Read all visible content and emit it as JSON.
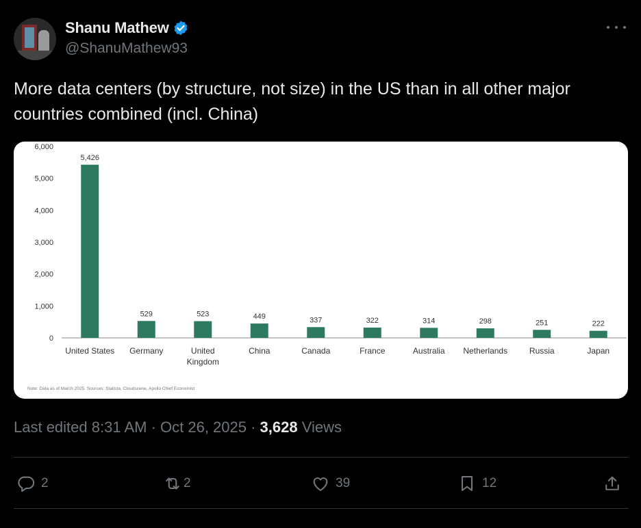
{
  "tweet": {
    "author": {
      "display_name": "Shanu Mathew",
      "handle": "@ShanuMathew93",
      "verified_color": "#1d9bf0"
    },
    "text": "More data centers (by structure, not size)  in the US than in all other major countries combined (incl. China)",
    "meta": {
      "edited_time": "Last edited 8:31 AM · Oct 26, 2025 · ",
      "views_count": "3,628",
      "views_label": " Views"
    },
    "actions": {
      "replies": "2",
      "reposts": "2",
      "likes": "39",
      "bookmarks": "12"
    },
    "icons": [
      "reply-icon",
      "repost-icon",
      "like-icon",
      "bookmark-icon",
      "share-icon",
      "more-icon",
      "verified-badge-icon"
    ]
  },
  "chart_data": {
    "type": "bar",
    "categories": [
      "United States",
      "Germany",
      "United\nKingdom",
      "China",
      "Canada",
      "France",
      "Australia",
      "Netherlands",
      "Russia",
      "Japan"
    ],
    "values": [
      5426,
      529,
      523,
      449,
      337,
      322,
      314,
      298,
      251,
      222
    ],
    "value_labels": [
      "5,426",
      "529",
      "523",
      "449",
      "337",
      "322",
      "314",
      "298",
      "251",
      "222"
    ],
    "y_ticks": [
      "0",
      "1,000",
      "2,000",
      "3,000",
      "4,000",
      "5,000",
      "6,000"
    ],
    "ylim": [
      0,
      6000
    ],
    "bar_color": "#2e7a60",
    "grid": false,
    "note": "Note: Data as of March 2025. Sources: Statista, Cloudscene, Apollo Chief Economist"
  }
}
